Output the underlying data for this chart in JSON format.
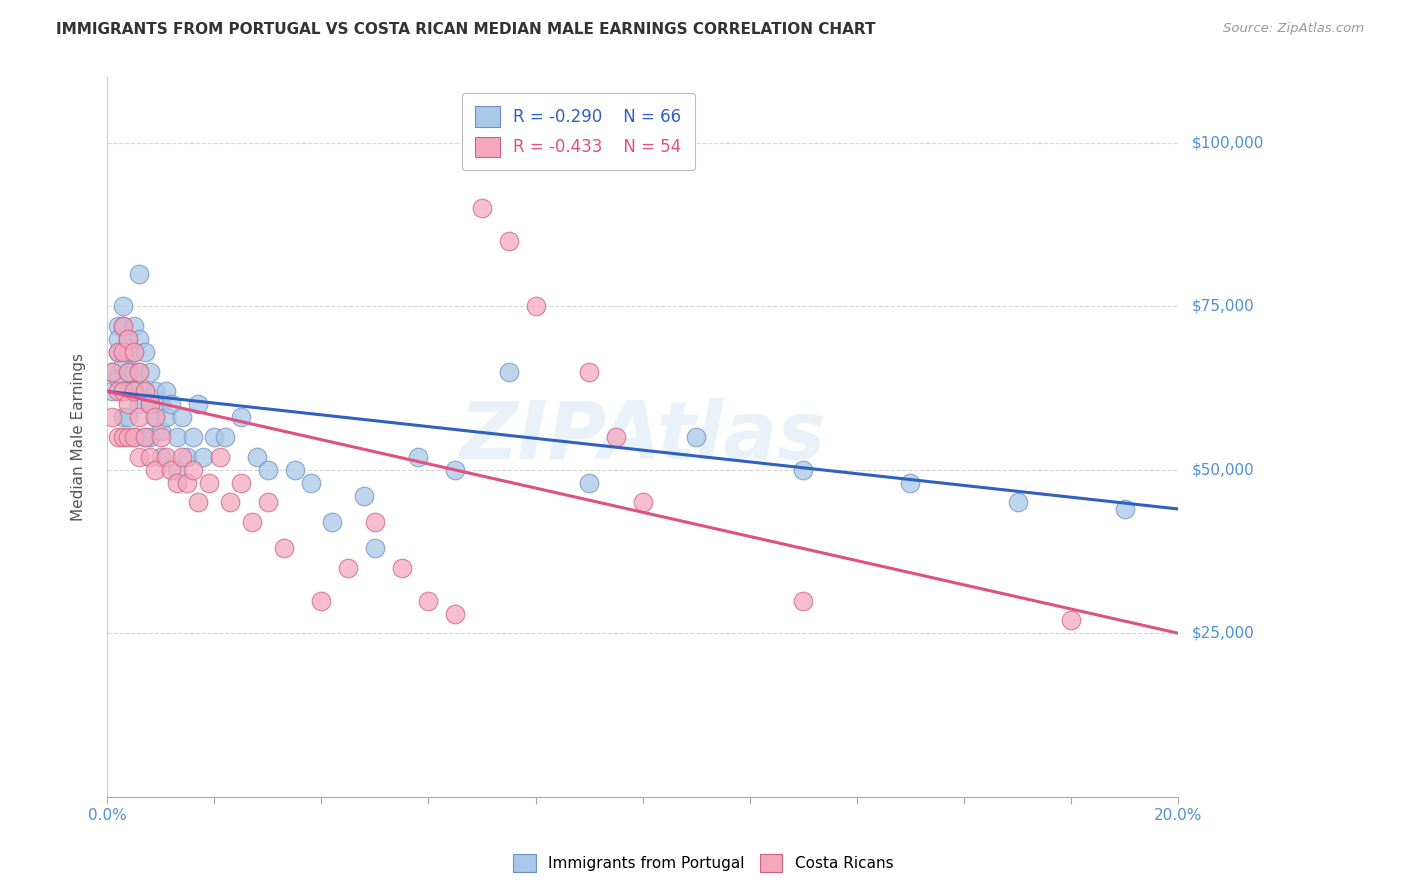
{
  "title": "IMMIGRANTS FROM PORTUGAL VS COSTA RICAN MEDIAN MALE EARNINGS CORRELATION CHART",
  "source": "Source: ZipAtlas.com",
  "ylabel": "Median Male Earnings",
  "ytick_labels": [
    "$25,000",
    "$50,000",
    "$75,000",
    "$100,000"
  ],
  "ytick_values": [
    25000,
    50000,
    75000,
    100000
  ],
  "xmin": 0.0,
  "xmax": 0.2,
  "ymin": 0,
  "ymax": 110000,
  "blue_R": "-0.290",
  "blue_N": "66",
  "pink_R": "-0.433",
  "pink_N": "54",
  "blue_color": "#a8c8e8",
  "pink_color": "#f4a8be",
  "blue_edge_color": "#7090c0",
  "pink_edge_color": "#d06080",
  "blue_line_color": "#3060c0",
  "pink_line_color": "#e05080",
  "legend_label_blue": "Immigrants from Portugal",
  "legend_label_pink": "Costa Ricans",
  "watermark": "ZIPAtlas",
  "ytick_color": "#5090d0",
  "blue_scatter_x": [
    0.001,
    0.001,
    0.002,
    0.002,
    0.002,
    0.002,
    0.003,
    0.003,
    0.003,
    0.003,
    0.003,
    0.003,
    0.004,
    0.004,
    0.004,
    0.004,
    0.004,
    0.005,
    0.005,
    0.005,
    0.005,
    0.005,
    0.006,
    0.006,
    0.006,
    0.006,
    0.007,
    0.007,
    0.007,
    0.008,
    0.008,
    0.008,
    0.009,
    0.009,
    0.01,
    0.01,
    0.01,
    0.011,
    0.011,
    0.012,
    0.013,
    0.013,
    0.014,
    0.015,
    0.016,
    0.017,
    0.018,
    0.02,
    0.022,
    0.025,
    0.028,
    0.03,
    0.035,
    0.038,
    0.042,
    0.048,
    0.05,
    0.058,
    0.065,
    0.075,
    0.09,
    0.11,
    0.13,
    0.15,
    0.17,
    0.19
  ],
  "blue_scatter_y": [
    65000,
    62000,
    68000,
    72000,
    70000,
    64000,
    75000,
    72000,
    68000,
    66000,
    62000,
    58000,
    70000,
    68000,
    65000,
    62000,
    58000,
    72000,
    68000,
    65000,
    62000,
    55000,
    80000,
    70000,
    65000,
    60000,
    68000,
    62000,
    55000,
    65000,
    60000,
    55000,
    62000,
    58000,
    60000,
    56000,
    52000,
    62000,
    58000,
    60000,
    55000,
    50000,
    58000,
    52000,
    55000,
    60000,
    52000,
    55000,
    55000,
    58000,
    52000,
    50000,
    50000,
    48000,
    42000,
    46000,
    38000,
    52000,
    50000,
    65000,
    48000,
    55000,
    50000,
    48000,
    45000,
    44000
  ],
  "pink_scatter_x": [
    0.001,
    0.001,
    0.002,
    0.002,
    0.002,
    0.003,
    0.003,
    0.003,
    0.003,
    0.004,
    0.004,
    0.004,
    0.004,
    0.005,
    0.005,
    0.005,
    0.006,
    0.006,
    0.006,
    0.007,
    0.007,
    0.008,
    0.008,
    0.009,
    0.009,
    0.01,
    0.011,
    0.012,
    0.013,
    0.014,
    0.015,
    0.016,
    0.017,
    0.019,
    0.021,
    0.023,
    0.025,
    0.027,
    0.03,
    0.033,
    0.04,
    0.045,
    0.05,
    0.055,
    0.06,
    0.065,
    0.07,
    0.075,
    0.08,
    0.09,
    0.095,
    0.1,
    0.13,
    0.18
  ],
  "pink_scatter_y": [
    65000,
    58000,
    68000,
    62000,
    55000,
    72000,
    68000,
    62000,
    55000,
    70000,
    65000,
    60000,
    55000,
    68000,
    62000,
    55000,
    65000,
    58000,
    52000,
    62000,
    55000,
    60000,
    52000,
    58000,
    50000,
    55000,
    52000,
    50000,
    48000,
    52000,
    48000,
    50000,
    45000,
    48000,
    52000,
    45000,
    48000,
    42000,
    45000,
    38000,
    30000,
    35000,
    42000,
    35000,
    30000,
    28000,
    90000,
    85000,
    75000,
    65000,
    55000,
    45000,
    30000,
    27000
  ]
}
